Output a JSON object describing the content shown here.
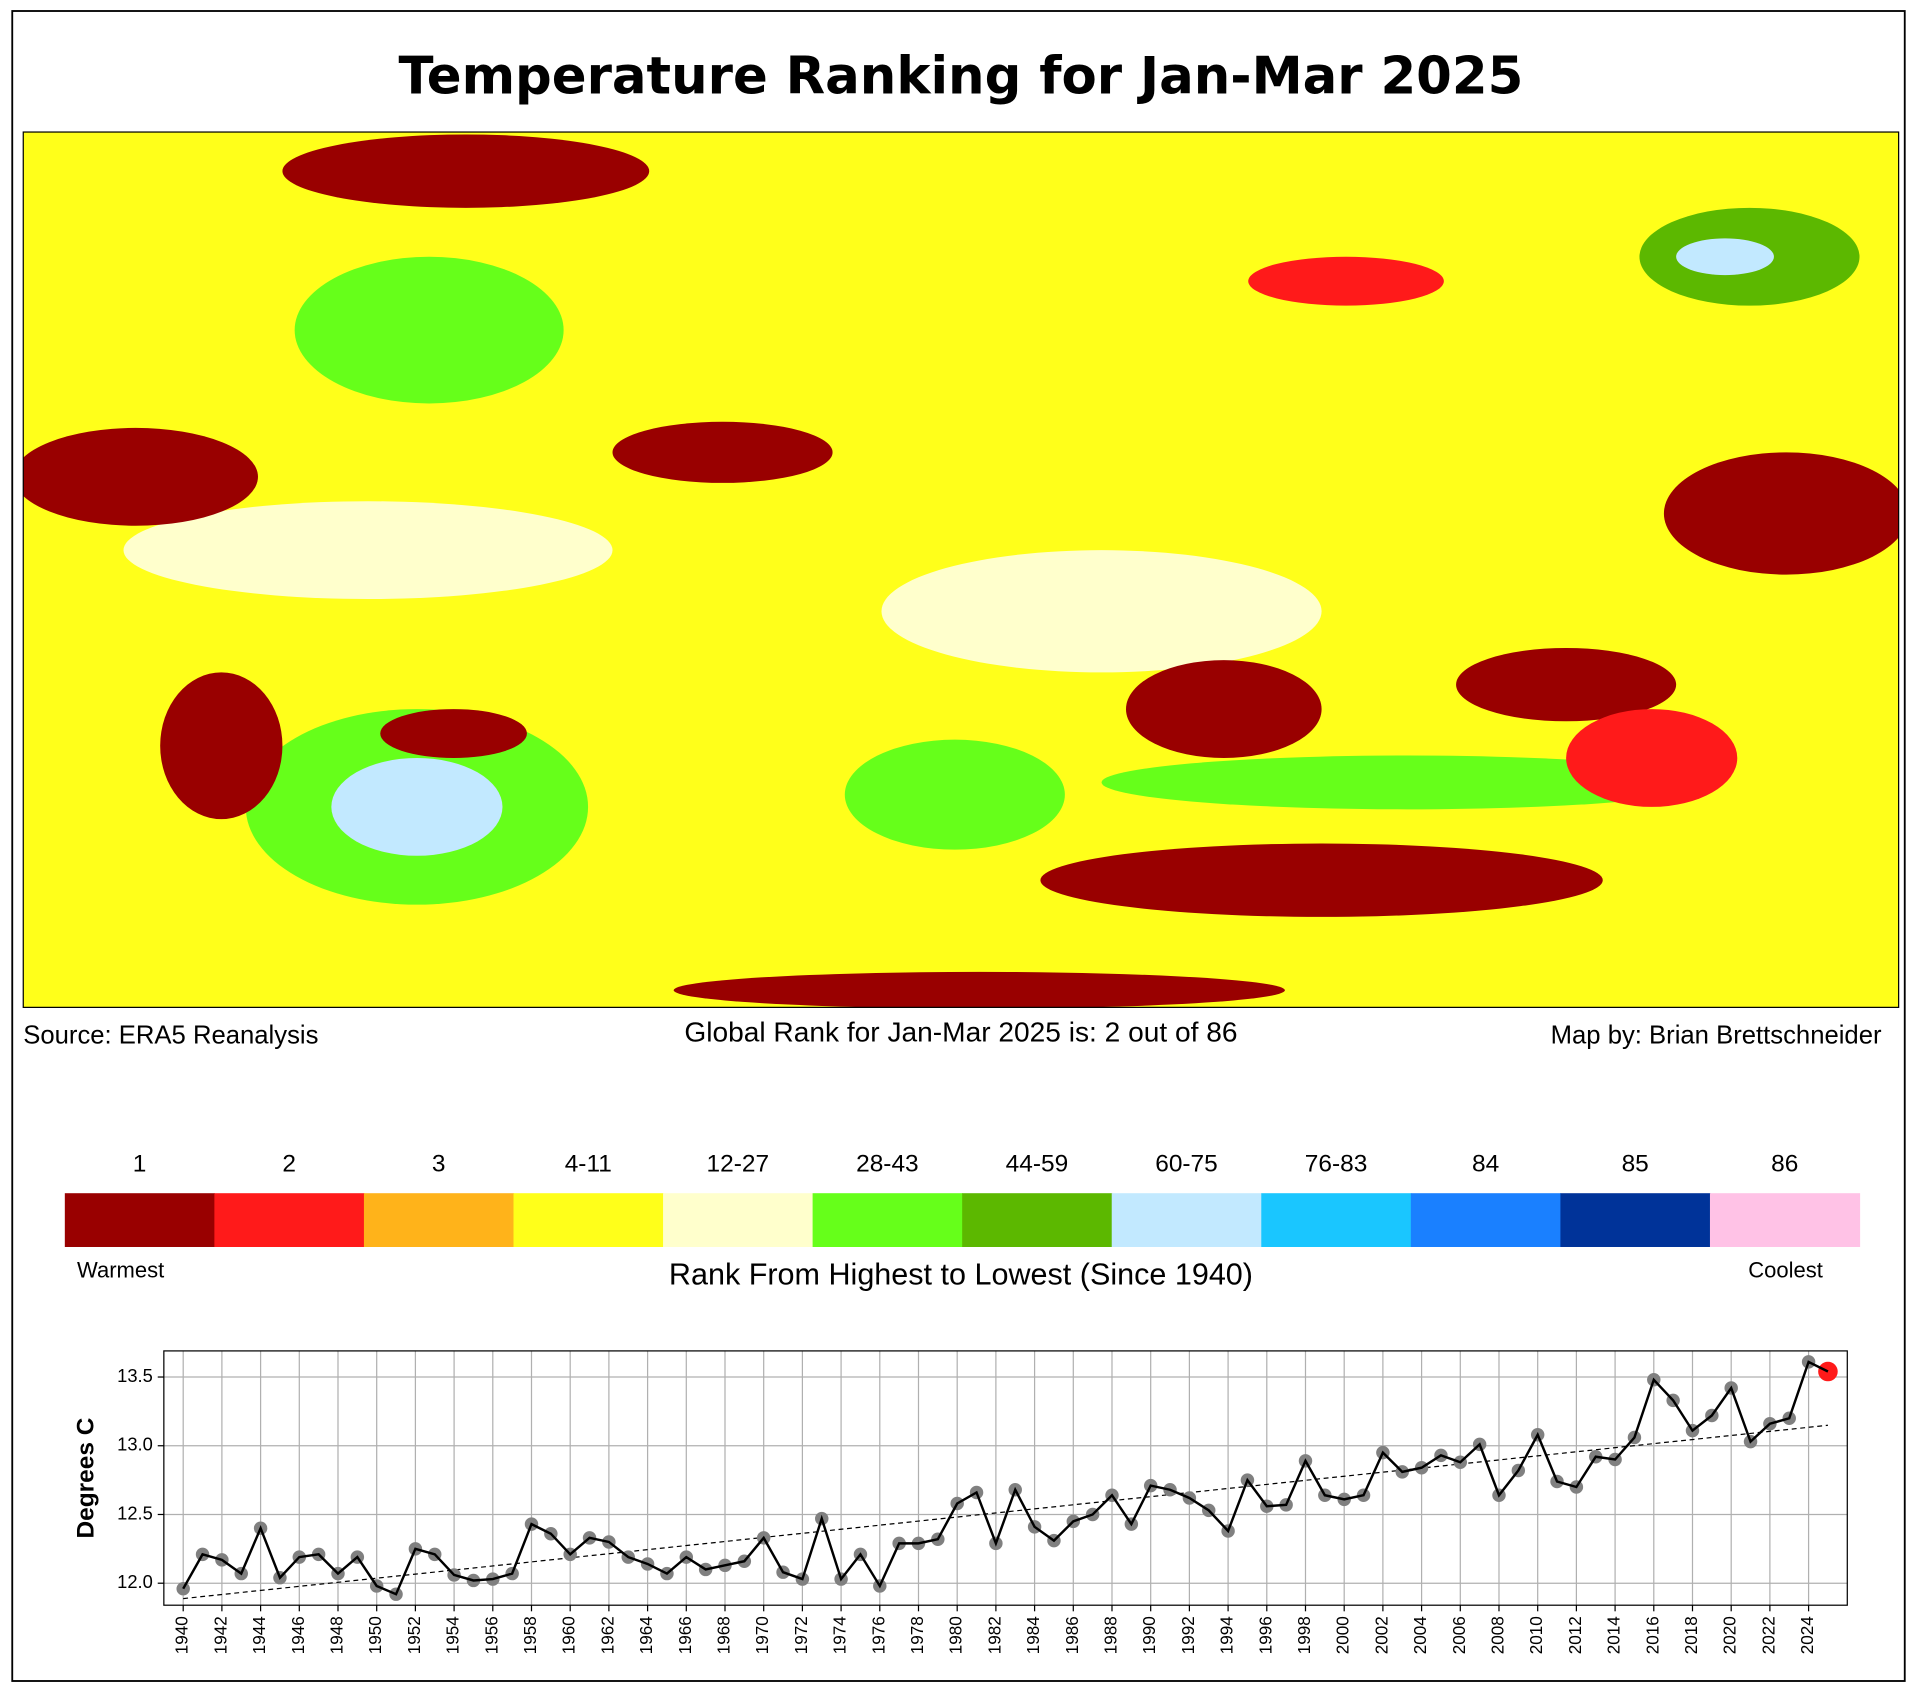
{
  "title": "Temperature Ranking for Jan-Mar 2025",
  "source": "Source: ERA5 Reanalysis",
  "rank_text": "Global Rank for Jan-Mar 2025 is: 2 out of 86",
  "map_credit": "Map by: Brian Brettschneider",
  "legend": {
    "labels": [
      "1",
      "2",
      "3",
      "4-11",
      "12-27",
      "28-43",
      "44-59",
      "60-75",
      "76-83",
      "84",
      "85",
      "86"
    ],
    "colors": [
      "#990000",
      "#ff1a1a",
      "#ffb31a",
      "#ffff1a",
      "#ffffcc",
      "#66ff1a",
      "#5cb800",
      "#c2e9ff",
      "#1ac6ff",
      "#1a80ff",
      "#003399",
      "#ffc2e6"
    ],
    "left_label": "Warmest",
    "right_label": "Coolest",
    "title": "Rank From Highest to Lowest (Since 1940)"
  },
  "chart_data": {
    "type": "line",
    "ylabel": "Degrees C",
    "x": [
      1940,
      1941,
      1942,
      1943,
      1944,
      1945,
      1946,
      1947,
      1948,
      1949,
      1950,
      1951,
      1952,
      1953,
      1954,
      1955,
      1956,
      1957,
      1958,
      1959,
      1960,
      1961,
      1962,
      1963,
      1964,
      1965,
      1966,
      1967,
      1968,
      1969,
      1970,
      1971,
      1972,
      1973,
      1974,
      1975,
      1976,
      1977,
      1978,
      1979,
      1980,
      1981,
      1982,
      1983,
      1984,
      1985,
      1986,
      1987,
      1988,
      1989,
      1990,
      1991,
      1992,
      1993,
      1994,
      1995,
      1996,
      1997,
      1998,
      1999,
      2000,
      2001,
      2002,
      2003,
      2004,
      2005,
      2006,
      2007,
      2008,
      2009,
      2010,
      2011,
      2012,
      2013,
      2014,
      2015,
      2016,
      2017,
      2018,
      2019,
      2020,
      2021,
      2022,
      2023,
      2024,
      2025
    ],
    "values": [
      11.96,
      12.21,
      12.17,
      12.07,
      12.4,
      12.04,
      12.19,
      12.21,
      12.07,
      12.19,
      11.98,
      11.92,
      12.25,
      12.21,
      12.06,
      12.02,
      12.03,
      12.07,
      12.43,
      12.36,
      12.21,
      12.33,
      12.3,
      12.19,
      12.14,
      12.07,
      12.19,
      12.1,
      12.13,
      12.16,
      12.33,
      12.08,
      12.03,
      12.47,
      12.03,
      12.21,
      11.98,
      12.29,
      12.29,
      12.32,
      12.58,
      12.66,
      12.29,
      12.68,
      12.41,
      12.31,
      12.45,
      12.5,
      12.64,
      12.43,
      12.71,
      12.68,
      12.62,
      12.53,
      12.38,
      12.75,
      12.56,
      12.57,
      12.89,
      12.64,
      12.61,
      12.64,
      12.95,
      12.81,
      12.84,
      12.93,
      12.88,
      13.01,
      12.64,
      12.82,
      13.08,
      12.74,
      12.7,
      12.92,
      12.9,
      13.06,
      13.48,
      13.33,
      13.11,
      13.22,
      13.42,
      13.03,
      13.16,
      13.2,
      13.61,
      13.54
    ],
    "color": "#000000",
    "marker_color": "#808080",
    "highlight_last": true,
    "highlight_color": "#ff1a1a",
    "trend": true,
    "grid": true,
    "xlim": [
      1939,
      2026
    ],
    "xticks": [
      1940,
      1942,
      1944,
      1946,
      1948,
      1950,
      1952,
      1954,
      1956,
      1958,
      1960,
      1962,
      1964,
      1966,
      1968,
      1970,
      1972,
      1974,
      1976,
      1978,
      1980,
      1982,
      1984,
      1986,
      1988,
      1990,
      1992,
      1994,
      1996,
      1998,
      2000,
      2002,
      2004,
      2006,
      2008,
      2010,
      2012,
      2014,
      2016,
      2018,
      2020,
      2022,
      2024
    ],
    "ylim": [
      11.84,
      13.69
    ],
    "yticks": [
      {
        "value": 12.0,
        "label": "12.0"
      },
      {
        "value": 12.5,
        "label": "12.5"
      },
      {
        "value": 13.0,
        "label": "13.0"
      },
      {
        "value": 13.5,
        "label": "13.5"
      }
    ]
  }
}
